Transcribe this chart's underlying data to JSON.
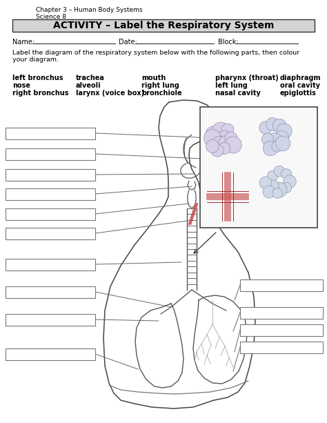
{
  "title": "ACTIVITY – Label the Respiratory System",
  "subtitle_line1": "Chapter 3 – Human Body Systems",
  "subtitle_line2": "Science 8",
  "instruction": "Label the diagram of the respiratory system below with the following parts, then colour\nyour diagram.",
  "parts_col1": [
    "left bronchus",
    "nose",
    "right bronchus"
  ],
  "parts_col2": [
    "trachea",
    "alveoli",
    "larynx (voice box)"
  ],
  "parts_col3": [
    "mouth",
    "right lung",
    "bronchiole"
  ],
  "parts_col4": [
    "pharynx (throat)",
    "left lung",
    "nasal cavity"
  ],
  "parts_col5": [
    "diaphragm",
    "oral cavity",
    "epiglottis"
  ],
  "bg_color": "#ffffff",
  "text_color": "#000000",
  "line_color": "#555555",
  "box_edge": "#777777"
}
